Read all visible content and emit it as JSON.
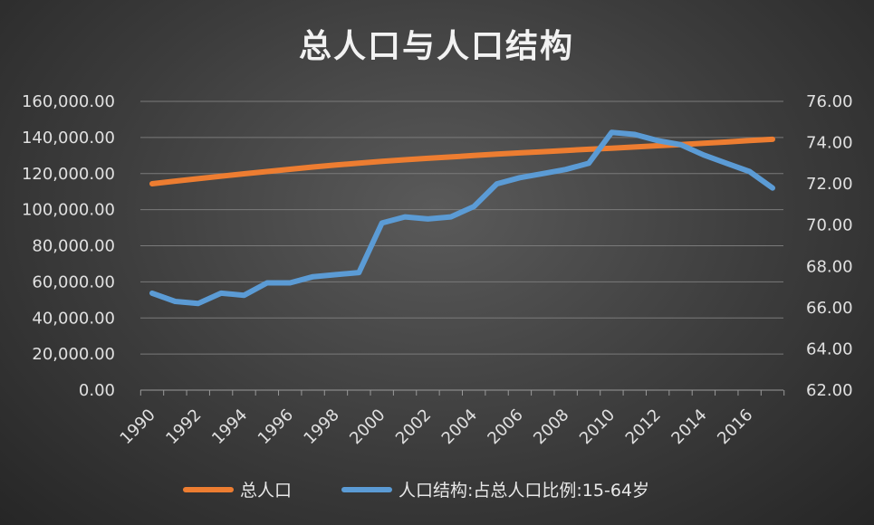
{
  "chart_data": {
    "type": "line",
    "title": "总人口与人口结构",
    "x": [
      1990,
      1991,
      1992,
      1993,
      1994,
      1995,
      1996,
      1997,
      1998,
      1999,
      2000,
      2001,
      2002,
      2003,
      2004,
      2005,
      2006,
      2007,
      2008,
      2009,
      2010,
      2011,
      2012,
      2013,
      2014,
      2015,
      2016,
      2017
    ],
    "x_tick_labels": [
      "1990",
      "1992",
      "1994",
      "1996",
      "1998",
      "2000",
      "2002",
      "2004",
      "2006",
      "2008",
      "2010",
      "2012",
      "2014",
      "2016"
    ],
    "y_left": {
      "min": 0,
      "max": 160000,
      "step": 20000,
      "tick_labels": [
        "0.00",
        "20,000.00",
        "40,000.00",
        "60,000.00",
        "80,000.00",
        "100,000.00",
        "120,000.00",
        "140,000.00",
        "160,000.00"
      ]
    },
    "y_right": {
      "min": 62,
      "max": 76,
      "step": 2,
      "tick_labels": [
        "62.00",
        "64.00",
        "66.00",
        "68.00",
        "70.00",
        "72.00",
        "74.00",
        "76.00"
      ]
    },
    "grid": true,
    "legend_position": "bottom",
    "series": [
      {
        "name": "总人口",
        "axis": "left",
        "color": "#ed7d31",
        "values": [
          114333,
          115823,
          117171,
          118517,
          119850,
          121121,
          122389,
          123626,
          124761,
          125786,
          126743,
          127627,
          128453,
          129227,
          129988,
          130756,
          131448,
          132129,
          132802,
          133450,
          134091,
          134735,
          135404,
          136072,
          136782,
          137462,
          138271,
          139008
        ]
      },
      {
        "name": "人口结构:占总人口比例:15-64岁",
        "axis": "right",
        "color": "#5b9bd5",
        "values": [
          66.7,
          66.3,
          66.2,
          66.7,
          66.6,
          67.2,
          67.2,
          67.5,
          67.6,
          67.7,
          70.1,
          70.4,
          70.3,
          70.4,
          70.9,
          72.0,
          72.3,
          72.5,
          72.7,
          73.0,
          74.5,
          74.4,
          74.1,
          73.9,
          73.4,
          73.0,
          72.6,
          71.8
        ]
      }
    ]
  }
}
